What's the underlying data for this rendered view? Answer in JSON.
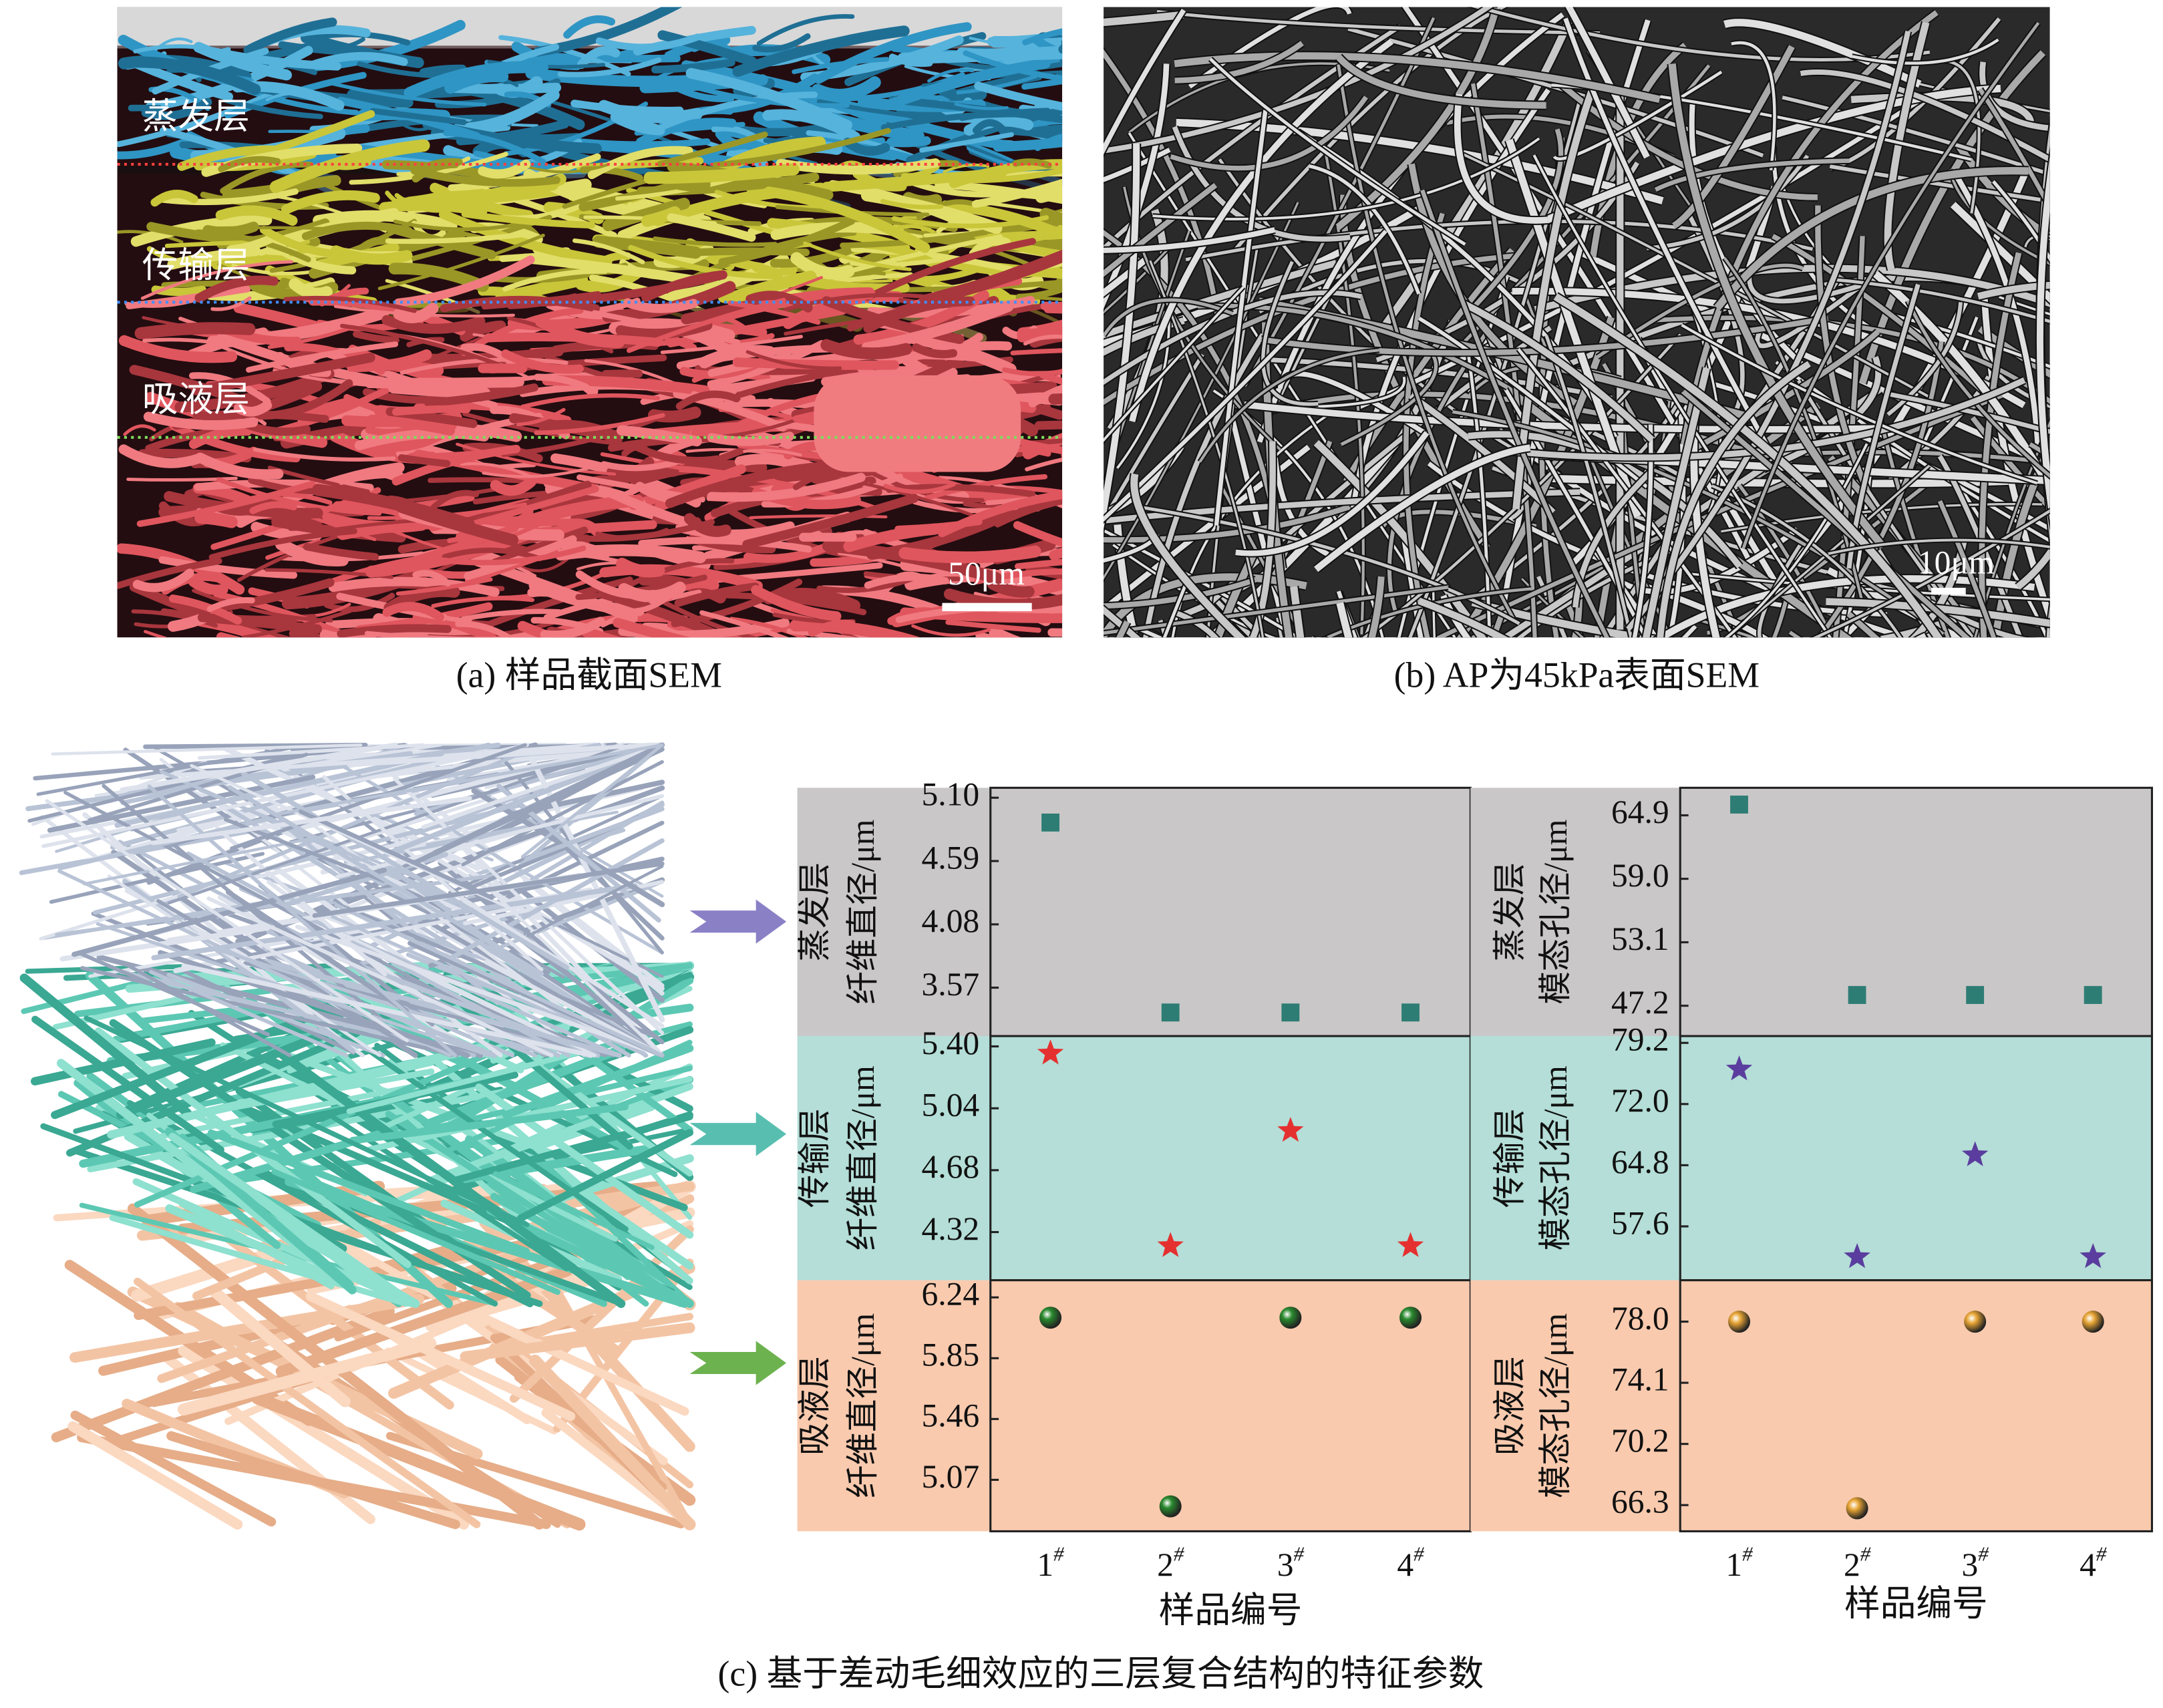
{
  "figure_a": {
    "layer_labels": [
      "蒸发层",
      "传输层",
      "吸液层"
    ],
    "scale_bar": "50μm",
    "caption": "(a) 样品截面SEM"
  },
  "figure_b": {
    "scale_bar": "10μm",
    "caption": "(b) AP为45kPa表面SEM"
  },
  "figure_c": {
    "caption": "(c) 基于差动毛细效应的三层复合结构的特征参数"
  },
  "chart_data": [
    {
      "type": "scatter",
      "ylabel": [
        "蒸发层",
        "纤维直径/μm"
      ],
      "values": [
        4.9,
        3.37,
        3.37,
        3.37
      ],
      "ylim": [
        3.18,
        5.18
      ],
      "yticks": [
        3.57,
        4.08,
        4.59,
        {
          "value": 5.1,
          "label": "5.10"
        }
      ],
      "marker": "square",
      "color": "#2e7d74",
      "background": "#c9c7c7"
    },
    {
      "type": "scatter",
      "ylabel": [
        "传输层",
        "纤维直径/μm"
      ],
      "values": [
        5.36,
        4.24,
        4.91,
        4.24
      ],
      "ylim": [
        4.04,
        5.46
      ],
      "yticks": [
        4.32,
        4.68,
        5.04,
        {
          "value": 5.4,
          "label": "5.40"
        }
      ],
      "marker": "star",
      "color": "#e53030",
      "background": "#b4ded7"
    },
    {
      "type": "scatter",
      "ylabel": [
        "吸液层",
        "纤维直径/μm"
      ],
      "values": [
        6.11,
        4.9,
        6.11,
        6.11
      ],
      "ylim": [
        4.74,
        6.35
      ],
      "yticks": [
        5.07,
        5.46,
        5.85,
        6.24
      ],
      "marker": "sphere",
      "color": "#2a8a2e",
      "background": "#f9caae",
      "categories": [
        "1#",
        "2#",
        "3#",
        "4#"
      ],
      "xlabel": "样品编号"
    },
    {
      "type": "scatter",
      "ylabel": [
        "蒸发层",
        "模态孔径/μm"
      ],
      "values": [
        65.9,
        48.2,
        48.2,
        48.2
      ],
      "ylim": [
        44.38,
        67.46
      ],
      "yticks": [
        47.2,
        53.1,
        {
          "value": 59,
          "label": "59.0"
        },
        64.9
      ],
      "marker": "square",
      "color": "#2e7d74",
      "background": "#c9c7c7"
    },
    {
      "type": "scatter",
      "ylabel": [
        "传输层",
        "模态孔径/μm"
      ],
      "values": [
        76.1,
        54.0,
        66.0,
        54.0
      ],
      "ylim": [
        51.26,
        80.0
      ],
      "yticks": [
        57.6,
        64.8,
        {
          "value": 72,
          "label": "72.0"
        },
        79.2
      ],
      "marker": "star",
      "color": "#5a3d9e",
      "background": "#b4ded7"
    },
    {
      "type": "scatter",
      "ylabel": [
        "吸液层",
        "模态孔径/μm"
      ],
      "values": [
        78.0,
        66.1,
        78.0,
        78.0
      ],
      "ylim": [
        64.63,
        80.64
      ],
      "yticks": [
        66.3,
        70.2,
        74.1,
        {
          "value": 78,
          "label": "78.0"
        }
      ],
      "marker": "sphere",
      "color": "#e8a535",
      "background": "#f9caae",
      "categories": [
        "1#",
        "2#",
        "3#",
        "4#"
      ],
      "xlabel": "样品编号"
    }
  ]
}
